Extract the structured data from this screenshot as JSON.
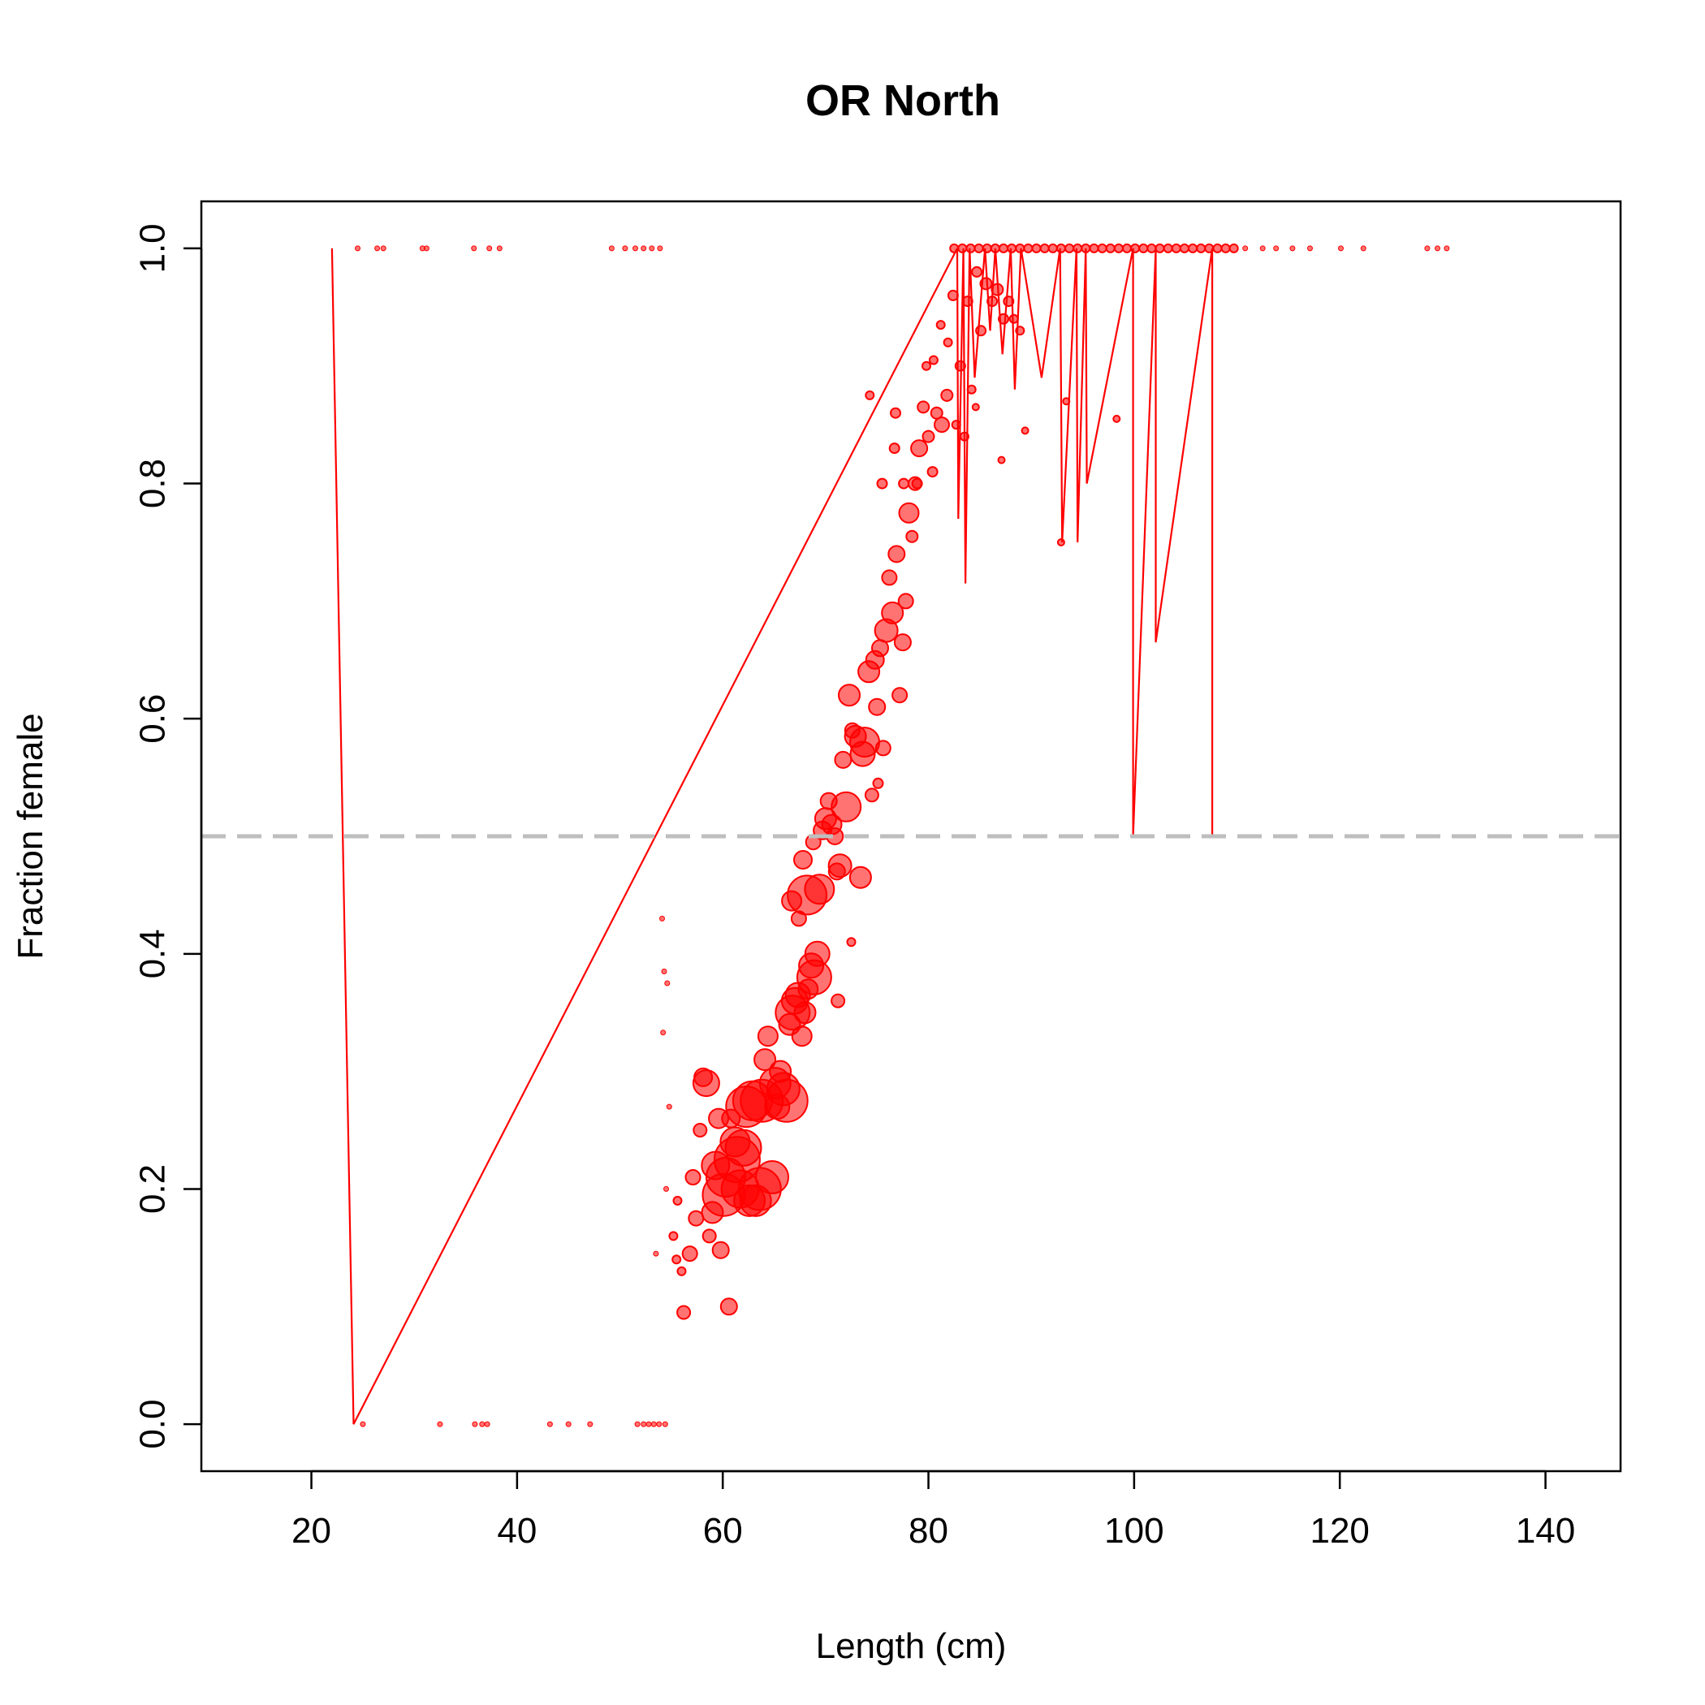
{
  "chart_data": {
    "type": "scatter",
    "title": "OR North",
    "xlabel": "Length (cm)",
    "ylabel": "Fraction female",
    "xlim": [
      9.3,
      147.3
    ],
    "ylim": [
      -0.04,
      1.04
    ],
    "xticks": [
      20,
      40,
      60,
      80,
      100,
      120,
      140
    ],
    "yticks": [
      0.0,
      0.2,
      0.4,
      0.6,
      0.8,
      1.0
    ],
    "xtick_labels": [
      "20",
      "40",
      "60",
      "80",
      "100",
      "120",
      "140"
    ],
    "ytick_labels": [
      "0.0",
      "0.2",
      "0.4",
      "0.6",
      "0.8",
      "1.0"
    ],
    "grid": false,
    "legend": "none",
    "reference_line": {
      "y": 0.5,
      "style": "dashed",
      "color": "#bebebe"
    },
    "colors": {
      "points": "#ff0000",
      "point_fill": "rgba(255,0,0,0.55)",
      "lines": "#ff0000"
    },
    "connecting_line": [
      [
        22,
        1.0
      ],
      [
        24.1,
        0.0
      ],
      [
        82.8,
        1.0
      ],
      [
        82.9,
        0.77
      ],
      [
        83.4,
        1.0
      ],
      [
        83.6,
        0.715
      ],
      [
        84,
        1.0
      ],
      [
        84.5,
        0.89
      ],
      [
        85.5,
        1.0
      ],
      [
        86,
        0.93
      ],
      [
        86.5,
        1.0
      ],
      [
        87.2,
        0.91
      ],
      [
        88,
        1.0
      ],
      [
        88.4,
        0.88
      ],
      [
        89,
        1.0
      ],
      [
        91,
        0.89
      ],
      [
        92.8,
        1.0
      ],
      [
        93,
        0.75
      ],
      [
        94.4,
        1.0
      ],
      [
        94.5,
        0.75
      ],
      [
        95.3,
        1.0
      ],
      [
        95.4,
        0.8
      ],
      [
        99.9,
        1.0
      ],
      [
        99.9,
        0.5
      ],
      [
        102.1,
        1.0
      ],
      [
        102.1,
        0.665
      ],
      [
        107.6,
        1.0
      ],
      [
        107.6,
        0.5
      ]
    ],
    "series": [
      {
        "values_format": "[length_cm, fraction_female, relative_size]",
        "points": [
          [
            25,
            0.0,
            0.3
          ],
          [
            32.5,
            0.0,
            0.3
          ],
          [
            35.9,
            0.0,
            0.3
          ],
          [
            36.6,
            0.0,
            0.3
          ],
          [
            37.1,
            0.0,
            0.3
          ],
          [
            43.2,
            0.0,
            0.3
          ],
          [
            45,
            0.0,
            0.3
          ],
          [
            47.1,
            0.0,
            0.3
          ],
          [
            51.7,
            0.0,
            0.3
          ],
          [
            52.3,
            0.0,
            0.3
          ],
          [
            52.8,
            0.0,
            0.3
          ],
          [
            53.3,
            0.0,
            0.3
          ],
          [
            53.8,
            0.0,
            0.3
          ],
          [
            54.4,
            0.0,
            0.3
          ],
          [
            24.5,
            1.0,
            0.3
          ],
          [
            26.4,
            1.0,
            0.3
          ],
          [
            27,
            1.0,
            0.3
          ],
          [
            30.8,
            1.0,
            0.3
          ],
          [
            31.2,
            1.0,
            0.3
          ],
          [
            35.8,
            1.0,
            0.3
          ],
          [
            37.3,
            1.0,
            0.3
          ],
          [
            38.3,
            1.0,
            0.3
          ],
          [
            49.2,
            1.0,
            0.3
          ],
          [
            50.5,
            1.0,
            0.3
          ],
          [
            51.5,
            1.0,
            0.3
          ],
          [
            52.3,
            1.0,
            0.3
          ],
          [
            53.1,
            1.0,
            0.3
          ],
          [
            53.9,
            1.0,
            0.3
          ],
          [
            110.8,
            1.0,
            0.3
          ],
          [
            112.5,
            1.0,
            0.3
          ],
          [
            113.8,
            1.0,
            0.3
          ],
          [
            115.4,
            1.0,
            0.3
          ],
          [
            117.1,
            1.0,
            0.3
          ],
          [
            120.1,
            1.0,
            0.3
          ],
          [
            122.3,
            1.0,
            0.3
          ],
          [
            128.5,
            1.0,
            0.3
          ],
          [
            129.5,
            1.0,
            0.3
          ],
          [
            130.4,
            1.0,
            0.3
          ],
          [
            54.1,
            0.43,
            0.3
          ],
          [
            54.3,
            0.385,
            0.3
          ],
          [
            54.6,
            0.375,
            0.3
          ],
          [
            54.2,
            0.333,
            0.3
          ],
          [
            54.8,
            0.27,
            0.3
          ],
          [
            53.5,
            0.145,
            0.3
          ],
          [
            54.5,
            0.2,
            0.3
          ],
          [
            55.2,
            0.16,
            0.5
          ],
          [
            55.5,
            0.14,
            0.5
          ],
          [
            55.6,
            0.19,
            0.5
          ],
          [
            56,
            0.13,
            0.5
          ],
          [
            56.2,
            0.095,
            0.8
          ],
          [
            56.8,
            0.145,
            0.9
          ],
          [
            57.1,
            0.21,
            0.9
          ],
          [
            57.4,
            0.175,
            0.9
          ],
          [
            57.8,
            0.25,
            0.8
          ],
          [
            58.1,
            0.295,
            1.1
          ],
          [
            58.4,
            0.29,
            1.6
          ],
          [
            58.7,
            0.16,
            0.8
          ],
          [
            59,
            0.18,
            1.3
          ],
          [
            59.3,
            0.22,
            1.7
          ],
          [
            59.6,
            0.26,
            1.2
          ],
          [
            59.8,
            0.148,
            1.0
          ],
          [
            60.1,
            0.195,
            2.6
          ],
          [
            60.3,
            0.21,
            2.4
          ],
          [
            60.6,
            0.1,
            1.0
          ],
          [
            60.8,
            0.26,
            1.1
          ],
          [
            61.2,
            0.24,
            1.8
          ],
          [
            61.4,
            0.225,
            2.8
          ],
          [
            61.7,
            0.2,
            2.3
          ],
          [
            62,
            0.235,
            2.2
          ],
          [
            62.3,
            0.27,
            2.5
          ],
          [
            62.6,
            0.19,
            1.9
          ],
          [
            62.9,
            0.275,
            2.4
          ],
          [
            63.2,
            0.19,
            1.9
          ],
          [
            63.6,
            0.2,
            2.6
          ],
          [
            63.8,
            0.275,
            2.6
          ],
          [
            64.1,
            0.31,
            1.3
          ],
          [
            64.4,
            0.33,
            1.2
          ],
          [
            64.8,
            0.21,
            2.0
          ],
          [
            65.1,
            0.29,
            1.9
          ],
          [
            65.3,
            0.27,
            1.5
          ],
          [
            65.6,
            0.3,
            1.3
          ],
          [
            65.9,
            0.285,
            2.0
          ],
          [
            66.2,
            0.275,
            2.6
          ],
          [
            66.5,
            0.34,
            1.3
          ],
          [
            66.8,
            0.35,
            2.1
          ],
          [
            67,
            0.36,
            1.6
          ],
          [
            67.3,
            0.365,
            1.5
          ],
          [
            67.7,
            0.33,
            1.2
          ],
          [
            68,
            0.35,
            1.3
          ],
          [
            68.3,
            0.37,
            1.2
          ],
          [
            68.6,
            0.39,
            1.5
          ],
          [
            68.9,
            0.38,
            2.1
          ],
          [
            69.2,
            0.4,
            1.5
          ],
          [
            66.7,
            0.445,
            1.2
          ],
          [
            67.4,
            0.43,
            0.9
          ],
          [
            67.8,
            0.48,
            1.1
          ],
          [
            68.2,
            0.45,
            2.4
          ],
          [
            68.8,
            0.495,
            0.9
          ],
          [
            69.4,
            0.455,
            1.8
          ],
          [
            69.7,
            0.505,
            1.1
          ],
          [
            70,
            0.515,
            1.3
          ],
          [
            70.3,
            0.53,
            1.0
          ],
          [
            70.6,
            0.51,
            1.2
          ],
          [
            70.9,
            0.5,
            1.0
          ],
          [
            71.1,
            0.47,
            1.0
          ],
          [
            71.4,
            0.475,
            1.4
          ],
          [
            71.7,
            0.565,
            1.0
          ],
          [
            72,
            0.525,
            1.8
          ],
          [
            72.3,
            0.62,
            1.3
          ],
          [
            72.6,
            0.59,
            0.9
          ],
          [
            72.9,
            0.585,
            1.3
          ],
          [
            73.4,
            0.465,
            1.3
          ],
          [
            73.6,
            0.57,
            1.5
          ],
          [
            73.8,
            0.58,
            1.8
          ],
          [
            74.2,
            0.64,
            1.3
          ],
          [
            74.5,
            0.535,
            0.8
          ],
          [
            74.8,
            0.65,
            1.1
          ],
          [
            75,
            0.61,
            1.0
          ],
          [
            75.3,
            0.66,
            1.0
          ],
          [
            75.6,
            0.575,
            0.9
          ],
          [
            75.9,
            0.675,
            1.4
          ],
          [
            76.2,
            0.72,
            0.9
          ],
          [
            76.5,
            0.69,
            1.3
          ],
          [
            76.9,
            0.74,
            1.0
          ],
          [
            77.2,
            0.62,
            0.9
          ],
          [
            77.5,
            0.665,
            1.0
          ],
          [
            77.8,
            0.7,
            0.9
          ],
          [
            78.1,
            0.775,
            1.2
          ],
          [
            78.4,
            0.755,
            0.7
          ],
          [
            78.7,
            0.8,
            0.8
          ],
          [
            79.1,
            0.83,
            1.0
          ],
          [
            79.5,
            0.865,
            0.7
          ],
          [
            80,
            0.84,
            0.7
          ],
          [
            80.4,
            0.81,
            0.6
          ],
          [
            80.8,
            0.86,
            0.7
          ],
          [
            81.3,
            0.85,
            0.9
          ],
          [
            81.8,
            0.875,
            0.7
          ],
          [
            72.5,
            0.41,
            0.5
          ],
          [
            71.2,
            0.36,
            0.8
          ],
          [
            75.1,
            0.545,
            0.6
          ],
          [
            76.7,
            0.83,
            0.6
          ],
          [
            75.5,
            0.8,
            0.6
          ],
          [
            74.3,
            0.875,
            0.5
          ],
          [
            76.8,
            0.86,
            0.6
          ],
          [
            77.6,
            0.8,
            0.6
          ],
          [
            78.9,
            0.8,
            0.6
          ],
          [
            79.8,
            0.9,
            0.5
          ],
          [
            80.5,
            0.905,
            0.5
          ],
          [
            81.2,
            0.935,
            0.5
          ],
          [
            81.9,
            0.92,
            0.5
          ],
          [
            82.4,
            0.96,
            0.6
          ],
          [
            83.1,
            0.9,
            0.6
          ],
          [
            83.8,
            0.955,
            0.6
          ],
          [
            84.2,
            0.88,
            0.5
          ],
          [
            84.7,
            0.98,
            0.6
          ],
          [
            85.1,
            0.93,
            0.6
          ],
          [
            85.6,
            0.97,
            0.7
          ],
          [
            86.2,
            0.955,
            0.6
          ],
          [
            86.7,
            0.965,
            0.7
          ],
          [
            87.3,
            0.94,
            0.6
          ],
          [
            87.8,
            0.955,
            0.6
          ],
          [
            88.3,
            0.94,
            0.5
          ],
          [
            88.9,
            0.93,
            0.5
          ],
          [
            89.4,
            0.845,
            0.4
          ],
          [
            87.1,
            0.82,
            0.4
          ],
          [
            84.6,
            0.865,
            0.4
          ],
          [
            92.9,
            0.75,
            0.4
          ],
          [
            93.4,
            0.87,
            0.4
          ],
          [
            98.3,
            0.855,
            0.4
          ],
          [
            83.5,
            0.84,
            0.5
          ],
          [
            82.7,
            0.85,
            0.5
          ],
          [
            82.5,
            1.0,
            0.5
          ],
          [
            83.3,
            1.0,
            0.5
          ],
          [
            84.1,
            1.0,
            0.5
          ],
          [
            84.9,
            1.0,
            0.5
          ],
          [
            85.7,
            1.0,
            0.5
          ],
          [
            86.5,
            1.0,
            0.5
          ],
          [
            87.3,
            1.0,
            0.5
          ],
          [
            88.1,
            1.0,
            0.5
          ],
          [
            88.9,
            1.0,
            0.5
          ],
          [
            89.7,
            1.0,
            0.5
          ],
          [
            90.5,
            1.0,
            0.5
          ],
          [
            91.3,
            1.0,
            0.5
          ],
          [
            92.1,
            1.0,
            0.5
          ],
          [
            92.9,
            1.0,
            0.5
          ],
          [
            93.7,
            1.0,
            0.5
          ],
          [
            94.5,
            1.0,
            0.5
          ],
          [
            95.3,
            1.0,
            0.5
          ],
          [
            96.1,
            1.0,
            0.5
          ],
          [
            96.9,
            1.0,
            0.5
          ],
          [
            97.7,
            1.0,
            0.5
          ],
          [
            98.5,
            1.0,
            0.5
          ],
          [
            99.3,
            1.0,
            0.5
          ],
          [
            100.1,
            1.0,
            0.5
          ],
          [
            100.9,
            1.0,
            0.5
          ],
          [
            101.7,
            1.0,
            0.5
          ],
          [
            102.5,
            1.0,
            0.5
          ],
          [
            103.3,
            1.0,
            0.5
          ],
          [
            104.1,
            1.0,
            0.5
          ],
          [
            104.9,
            1.0,
            0.5
          ],
          [
            105.7,
            1.0,
            0.5
          ],
          [
            106.5,
            1.0,
            0.5
          ],
          [
            107.3,
            1.0,
            0.5
          ],
          [
            108.1,
            1.0,
            0.5
          ],
          [
            108.9,
            1.0,
            0.5
          ],
          [
            109.7,
            1.0,
            0.5
          ]
        ]
      }
    ]
  }
}
